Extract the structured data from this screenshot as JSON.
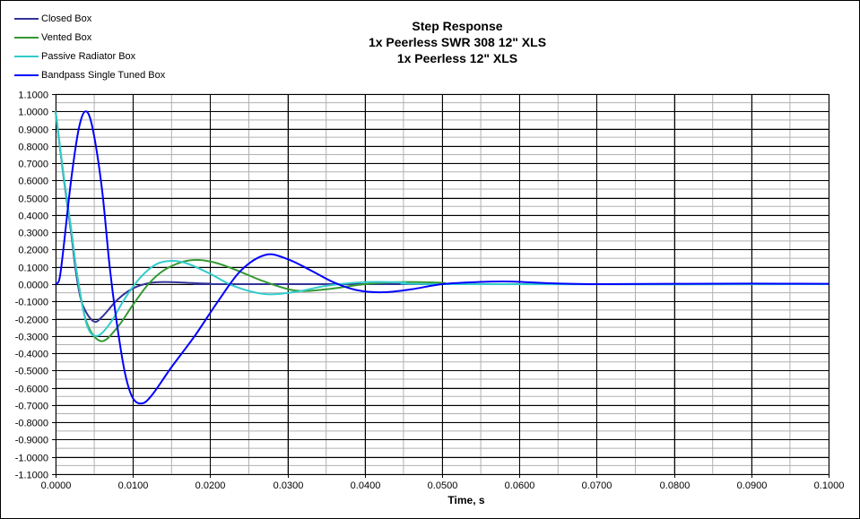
{
  "chart_data": {
    "type": "line",
    "title": "Step Response",
    "subtitle_lines": [
      "1x Peerless SWR 308 12\" XLS",
      "1x Peerless 12\" XLS"
    ],
    "xlabel": "Time, s",
    "ylabel": "",
    "xlim": [
      0,
      0.1
    ],
    "ylim": [
      -1.1,
      1.1
    ],
    "x_ticks": [
      "0.0000",
      "0.0100",
      "0.0200",
      "0.0300",
      "0.0400",
      "0.0500",
      "0.0600",
      "0.0700",
      "0.0800",
      "0.0900",
      "0.1000"
    ],
    "y_ticks": [
      "1.1000",
      "1.0000",
      "0.9000",
      "0.8000",
      "0.7000",
      "0.6000",
      "0.5000",
      "0.4000",
      "0.3000",
      "0.2000",
      "0.1000",
      "0.0000",
      "-0.1000",
      "-0.2000",
      "-0.3000",
      "-0.4000",
      "-0.5000",
      "-0.6000",
      "-0.7000",
      "-0.8000",
      "-0.9000",
      "-1.0000",
      "-1.1000"
    ],
    "grid": {
      "major_x": 0.01,
      "minor_x": 0.005,
      "major_y": 0.1,
      "minor_y": 0.05
    },
    "legend_position": "top-left",
    "series": [
      {
        "name": "Closed Box",
        "color": "#333399",
        "points": [
          [
            0,
            1.0
          ],
          [
            0.001,
            0.63
          ],
          [
            0.002,
            0.3
          ],
          [
            0.0027,
            0.05
          ],
          [
            0.0035,
            -0.12
          ],
          [
            0.0049,
            -0.215
          ],
          [
            0.006,
            -0.19
          ],
          [
            0.008,
            -0.09
          ],
          [
            0.01,
            -0.025
          ],
          [
            0.012,
            0.005
          ],
          [
            0.014,
            0.012
          ],
          [
            0.017,
            0.008
          ],
          [
            0.02,
            0.003
          ],
          [
            0.025,
            0.0
          ],
          [
            0.1,
            0.0
          ]
        ]
      },
      {
        "name": "Vented Box",
        "color": "#339933",
        "points": [
          [
            0,
            1.0
          ],
          [
            0.001,
            0.64
          ],
          [
            0.002,
            0.32
          ],
          [
            0.0028,
            0.05
          ],
          [
            0.004,
            -0.22
          ],
          [
            0.0059,
            -0.33
          ],
          [
            0.008,
            -0.25
          ],
          [
            0.01,
            -0.12
          ],
          [
            0.012,
            0.0
          ],
          [
            0.014,
            0.08
          ],
          [
            0.0165,
            0.13
          ],
          [
            0.0185,
            0.14
          ],
          [
            0.021,
            0.12
          ],
          [
            0.024,
            0.07
          ],
          [
            0.027,
            0.015
          ],
          [
            0.031,
            -0.037
          ],
          [
            0.035,
            -0.03
          ],
          [
            0.04,
            0.0
          ],
          [
            0.045,
            0.012
          ],
          [
            0.05,
            0.008
          ],
          [
            0.055,
            0.0
          ],
          [
            0.1,
            0.0
          ]
        ]
      },
      {
        "name": "Passive Radiator Box",
        "color": "#33CCCC",
        "points": [
          [
            0,
            1.0
          ],
          [
            0.001,
            0.64
          ],
          [
            0.002,
            0.32
          ],
          [
            0.0028,
            0.05
          ],
          [
            0.004,
            -0.23
          ],
          [
            0.0053,
            -0.3
          ],
          [
            0.007,
            -0.23
          ],
          [
            0.009,
            -0.08
          ],
          [
            0.011,
            0.04
          ],
          [
            0.013,
            0.115
          ],
          [
            0.015,
            0.135
          ],
          [
            0.017,
            0.12
          ],
          [
            0.02,
            0.06
          ],
          [
            0.023,
            -0.01
          ],
          [
            0.027,
            -0.057
          ],
          [
            0.031,
            -0.045
          ],
          [
            0.035,
            -0.01
          ],
          [
            0.04,
            0.012
          ],
          [
            0.045,
            0.01
          ],
          [
            0.05,
            0.0
          ],
          [
            0.1,
            0.0
          ]
        ]
      },
      {
        "name": "Bandpass Single Tuned Box",
        "color": "#0000FF",
        "points": [
          [
            0,
            0.0
          ],
          [
            0.0005,
            0.03
          ],
          [
            0.001,
            0.2
          ],
          [
            0.002,
            0.6
          ],
          [
            0.003,
            0.9
          ],
          [
            0.0039,
            1.0
          ],
          [
            0.0048,
            0.9
          ],
          [
            0.006,
            0.55
          ],
          [
            0.007,
            0.1
          ],
          [
            0.008,
            -0.25
          ],
          [
            0.009,
            -0.52
          ],
          [
            0.01,
            -0.66
          ],
          [
            0.0112,
            -0.69
          ],
          [
            0.0125,
            -0.64
          ],
          [
            0.015,
            -0.48
          ],
          [
            0.018,
            -0.3
          ],
          [
            0.021,
            -0.1
          ],
          [
            0.024,
            0.08
          ],
          [
            0.0272,
            0.17
          ],
          [
            0.03,
            0.145
          ],
          [
            0.033,
            0.08
          ],
          [
            0.036,
            0.01
          ],
          [
            0.039,
            -0.035
          ],
          [
            0.0423,
            -0.047
          ],
          [
            0.046,
            -0.03
          ],
          [
            0.05,
            0.0
          ],
          [
            0.055,
            0.013
          ],
          [
            0.059,
            0.015
          ],
          [
            0.064,
            0.005
          ],
          [
            0.07,
            0.0
          ],
          [
            0.08,
            0.002
          ],
          [
            0.09,
            0.003
          ],
          [
            0.1,
            0.002
          ]
        ]
      }
    ]
  }
}
